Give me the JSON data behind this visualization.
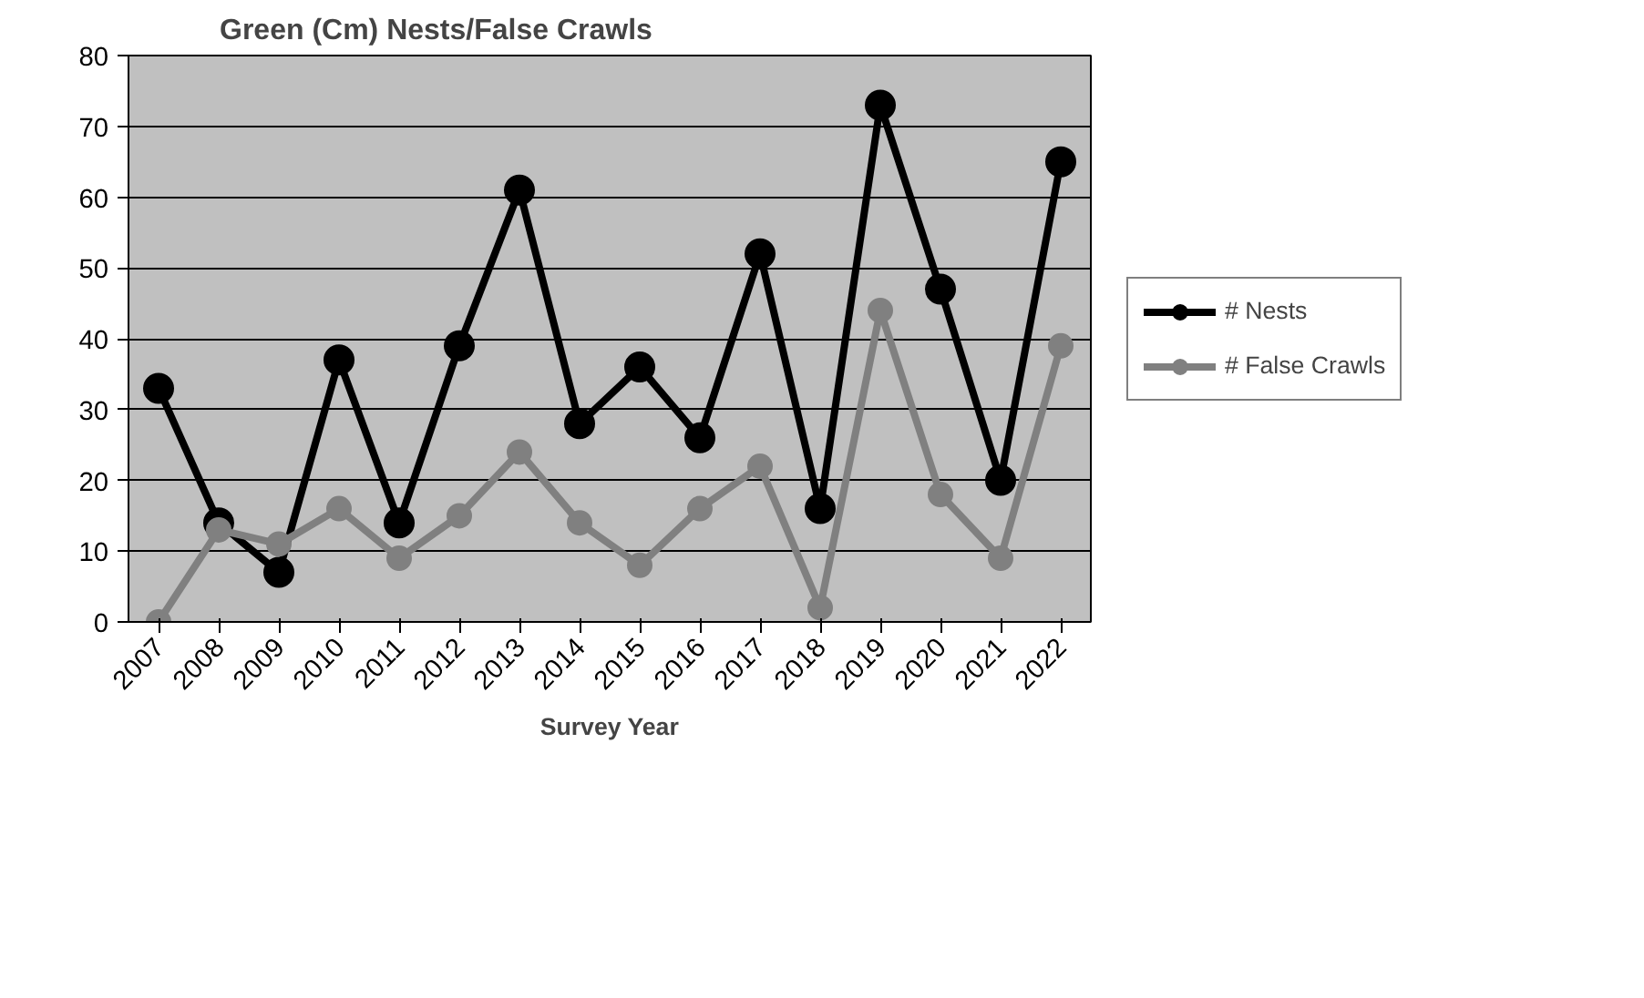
{
  "chart_data": {
    "type": "line",
    "title": "Green (Cm) Nests/False Crawls",
    "xlabel": "Survey Year",
    "categories": [
      "2007",
      "2008",
      "2009",
      "2010",
      "2011",
      "2012",
      "2013",
      "2014",
      "2015",
      "2016",
      "2017",
      "2018",
      "2019",
      "2020",
      "2021",
      "2022"
    ],
    "series": [
      {
        "name": "# Nests",
        "color": "#000000",
        "values": [
          33,
          14,
          7,
          37,
          14,
          39,
          61,
          28,
          36,
          26,
          52,
          16,
          73,
          47,
          20,
          65
        ]
      },
      {
        "name": "# False Crawls",
        "color": "#808080",
        "values": [
          0,
          13,
          11,
          16,
          9,
          15,
          24,
          14,
          8,
          16,
          22,
          2,
          44,
          18,
          9,
          39
        ]
      }
    ],
    "ylim": [
      0,
      80
    ],
    "yticks": [
      0,
      10,
      20,
      30,
      40,
      50,
      60,
      70,
      80
    ],
    "grid": "y",
    "legend": "right",
    "marker": "circle",
    "line_style": "solid"
  }
}
